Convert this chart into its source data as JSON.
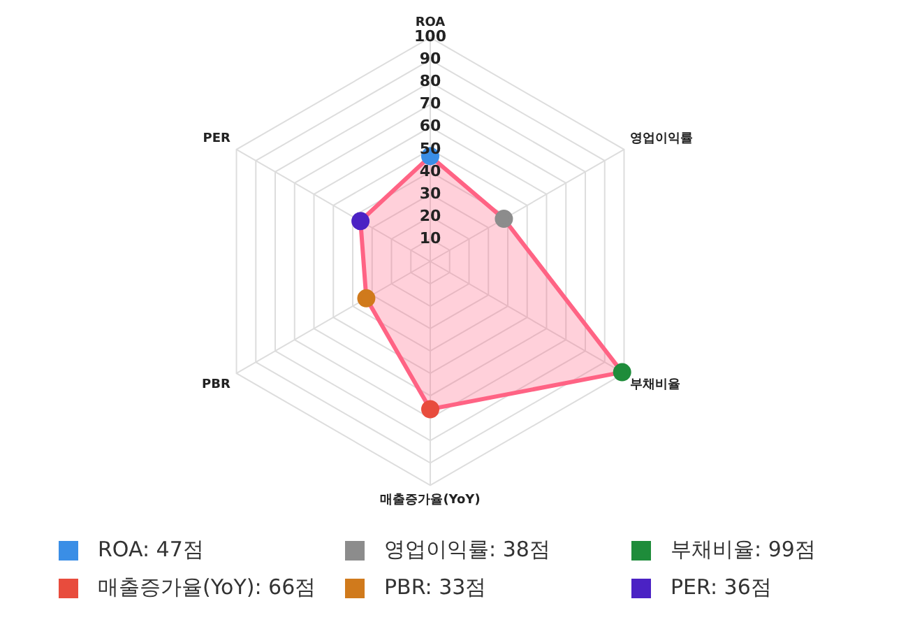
{
  "chart_data": {
    "type": "radar",
    "categories": [
      "ROA",
      "영업이익률",
      "부채비율",
      "매출증가율(YoY)",
      "PBR",
      "PER"
    ],
    "series": [
      {
        "color": "#ff6384",
        "values": [
          47,
          38,
          99,
          66,
          33,
          36
        ],
        "colors": [
          "#3a8ee6",
          "#8c8c8c",
          "#1e8c3a",
          "#e84c3d",
          "#d07a1c",
          "#4b22c4"
        ]
      }
    ],
    "annotations": [
      "ROA: 47점",
      "영업이익률: 38점",
      "부채비율: 99점",
      "매출증가율(YoY): 66점",
      "PBR: 33점",
      "PER: 36점"
    ],
    "ylim": [
      0,
      100
    ],
    "yticks": [
      10,
      20,
      30,
      40,
      50,
      60,
      70,
      80,
      90,
      100
    ],
    "grid": true
  }
}
